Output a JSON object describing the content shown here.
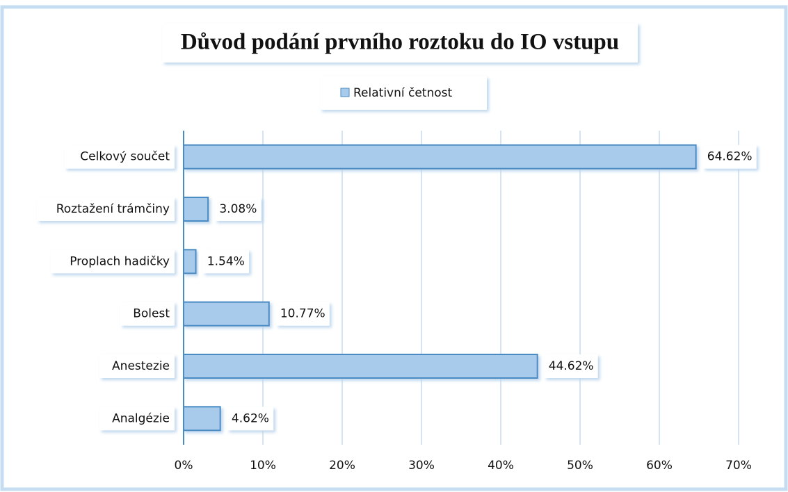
{
  "chart_data": {
    "type": "bar",
    "orientation": "horizontal",
    "title": "Důvod podání prvního roztoku do IO vstupu",
    "categories": [
      "Celkový součet",
      "Roztažení trámčiny",
      "Proplach hadičky",
      "Bolest",
      "Anestezie",
      "Analgézie"
    ],
    "series": [
      {
        "name": "Relativní četnost",
        "color": "#a9cbeb",
        "values": [
          64.62,
          3.08,
          1.54,
          10.77,
          44.62,
          4.62
        ],
        "value_labels": [
          "64.62%",
          "3.08%",
          "1.54%",
          "10.77%",
          "44.62%",
          "4.62%"
        ]
      }
    ],
    "xlim": [
      0,
      70
    ],
    "xticks": [
      {
        "value": 0,
        "label": "0%"
      },
      {
        "value": 10,
        "label": "10%"
      },
      {
        "value": 20,
        "label": "20%"
      },
      {
        "value": 30,
        "label": "30%"
      },
      {
        "value": 40,
        "label": "40%"
      },
      {
        "value": 50,
        "label": "50%"
      },
      {
        "value": 60,
        "label": "60%"
      },
      {
        "value": 70,
        "label": "70%"
      }
    ],
    "grid": true,
    "legend": "top"
  }
}
